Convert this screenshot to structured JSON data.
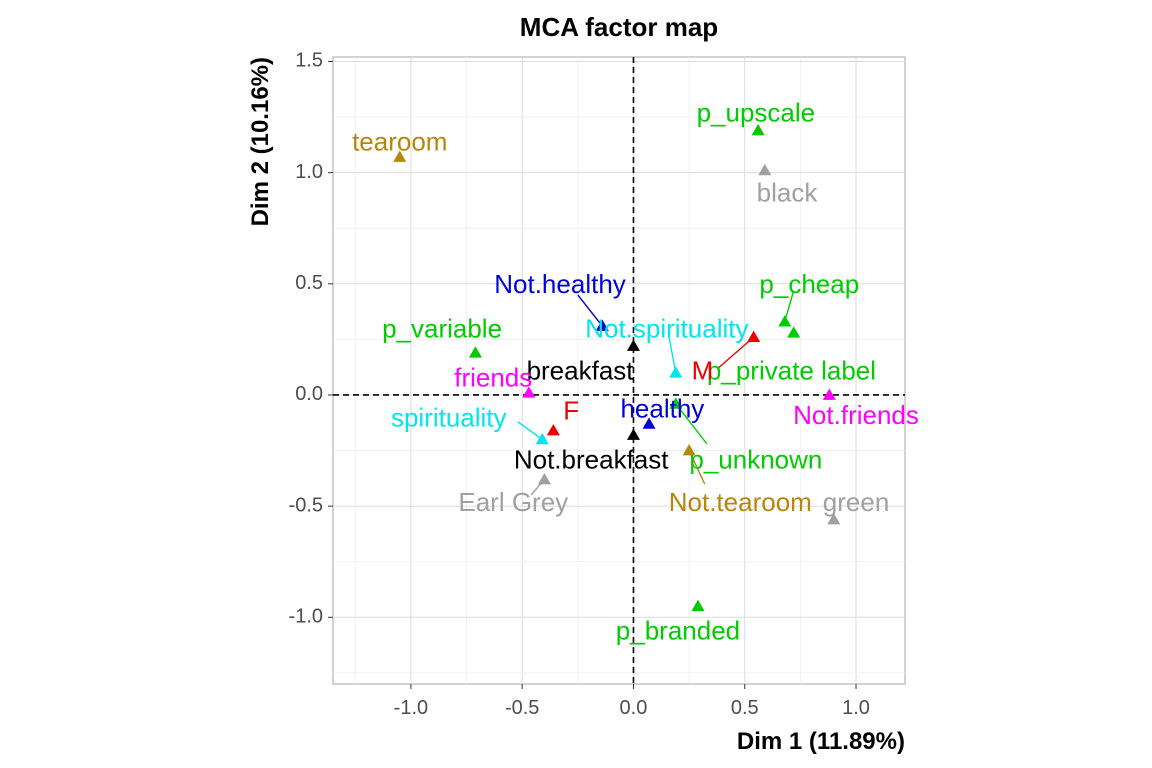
{
  "chart_data": {
    "type": "scatter",
    "title": "MCA factor map",
    "xlabel": "Dim 1 (11.89%)",
    "ylabel": "Dim 2 (10.16%)",
    "xlim": [
      -1.35,
      1.22
    ],
    "ylim": [
      -1.3,
      1.52
    ],
    "xticks": [
      -1.0,
      -0.5,
      0.0,
      0.5,
      1.0
    ],
    "xtick_labels": [
      "-1.0",
      "-0.5",
      "0.0",
      "0.5",
      "1.0"
    ],
    "yticks": [
      -1.0,
      -0.5,
      0.0,
      0.5,
      1.0,
      1.5
    ],
    "ytick_labels": [
      "-1.0",
      "-0.5",
      "0.0",
      "0.5",
      "1.0",
      "1.5"
    ],
    "grid": true,
    "reference_lines": {
      "x": 0,
      "y": 0,
      "style": "dashed"
    },
    "legend": "none",
    "points": [
      {
        "label": "tearoom",
        "x": -1.05,
        "y": 1.07,
        "color": "#B8860B",
        "lx": -1.05,
        "ly": 1.13
      },
      {
        "label": "p_upscale",
        "x": 0.56,
        "y": 1.19,
        "color": "#00CC00",
        "lx": 0.55,
        "ly": 1.26
      },
      {
        "label": "black",
        "x": 0.59,
        "y": 1.01,
        "color": "#A0A0A0",
        "lx": 0.69,
        "ly": 0.9
      },
      {
        "label": "p_cheap",
        "x": 0.68,
        "y": 0.33,
        "color": "#00CC00",
        "lx": 0.79,
        "ly": 0.49
      },
      {
        "label": "p_private label",
        "x": 0.72,
        "y": 0.28,
        "color": "#00CC00",
        "lx": 0.71,
        "ly": 0.1
      },
      {
        "label": "Not.healthy",
        "x": -0.14,
        "y": 0.31,
        "color": "#0000DD",
        "lx": -0.33,
        "ly": 0.49
      },
      {
        "label": "Not.spirituality",
        "x": 0.19,
        "y": 0.1,
        "color": "#00E5EE",
        "lx": 0.15,
        "ly": 0.29
      },
      {
        "label": "M",
        "x": 0.54,
        "y": 0.26,
        "color": "#EE0000",
        "lx": 0.31,
        "ly": 0.1
      },
      {
        "label": "p_variable",
        "x": -0.71,
        "y": 0.19,
        "color": "#00CC00",
        "lx": -0.86,
        "ly": 0.29
      },
      {
        "label": "breakfast",
        "x": 0.0,
        "y": 0.22,
        "color": "#000000",
        "lx": -0.24,
        "ly": 0.1
      },
      {
        "label": "friends",
        "x": -0.47,
        "y": 0.01,
        "color": "#FF00FF",
        "lx": -0.63,
        "ly": 0.07
      },
      {
        "label": "Not.friends",
        "x": 0.88,
        "y": 0.0,
        "color": "#FF00FF",
        "lx": 1.0,
        "ly": -0.1
      },
      {
        "label": "spirituality",
        "x": -0.41,
        "y": -0.2,
        "color": "#00E5EE",
        "lx": -0.83,
        "ly": -0.11
      },
      {
        "label": "F",
        "x": -0.36,
        "y": -0.16,
        "color": "#EE0000",
        "lx": -0.28,
        "ly": -0.08
      },
      {
        "label": "healthy",
        "x": 0.07,
        "y": -0.13,
        "color": "#0000DD",
        "lx": 0.13,
        "ly": -0.07
      },
      {
        "label": "p_unknown",
        "x": 0.19,
        "y": -0.04,
        "color": "#00CC00",
        "lx": 0.55,
        "ly": -0.3
      },
      {
        "label": "Not.breakfast",
        "x": 0.0,
        "y": -0.18,
        "color": "#000000",
        "lx": -0.19,
        "ly": -0.3
      },
      {
        "label": "Not.tearoom",
        "x": 0.25,
        "y": -0.25,
        "color": "#B8860B",
        "lx": 0.48,
        "ly": -0.49
      },
      {
        "label": "Earl Grey",
        "x": -0.4,
        "y": -0.38,
        "color": "#A0A0A0",
        "lx": -0.54,
        "ly": -0.49
      },
      {
        "label": "green",
        "x": 0.9,
        "y": -0.56,
        "color": "#A0A0A0",
        "lx": 1.0,
        "ly": -0.49
      },
      {
        "label": "p_branded",
        "x": 0.29,
        "y": -0.95,
        "color": "#00CC00",
        "lx": 0.2,
        "ly": -1.07
      }
    ],
    "connectors": [
      {
        "label": "Not.healthy",
        "from": [
          -0.25,
          0.45
        ],
        "to": [
          -0.14,
          0.31
        ]
      },
      {
        "label": "M",
        "from": [
          0.38,
          0.12
        ],
        "to": [
          0.54,
          0.26
        ]
      },
      {
        "label": "Not.spirituality",
        "from": [
          0.16,
          0.26
        ],
        "to": [
          0.19,
          0.1
        ]
      },
      {
        "label": "p_cheap",
        "from": [
          0.72,
          0.47
        ],
        "to": [
          0.68,
          0.33
        ]
      },
      {
        "label": "spirituality",
        "from": [
          -0.52,
          -0.12
        ],
        "to": [
          -0.41,
          -0.2
        ]
      },
      {
        "label": "p_unknown",
        "from": [
          0.33,
          -0.22
        ],
        "to": [
          0.19,
          -0.04
        ]
      },
      {
        "label": "Earl Grey",
        "from": [
          -0.46,
          -0.45
        ],
        "to": [
          -0.4,
          -0.38
        ]
      },
      {
        "label": "Not.tearoom",
        "from": [
          0.32,
          -0.4
        ],
        "to": [
          0.25,
          -0.25
        ]
      }
    ]
  }
}
